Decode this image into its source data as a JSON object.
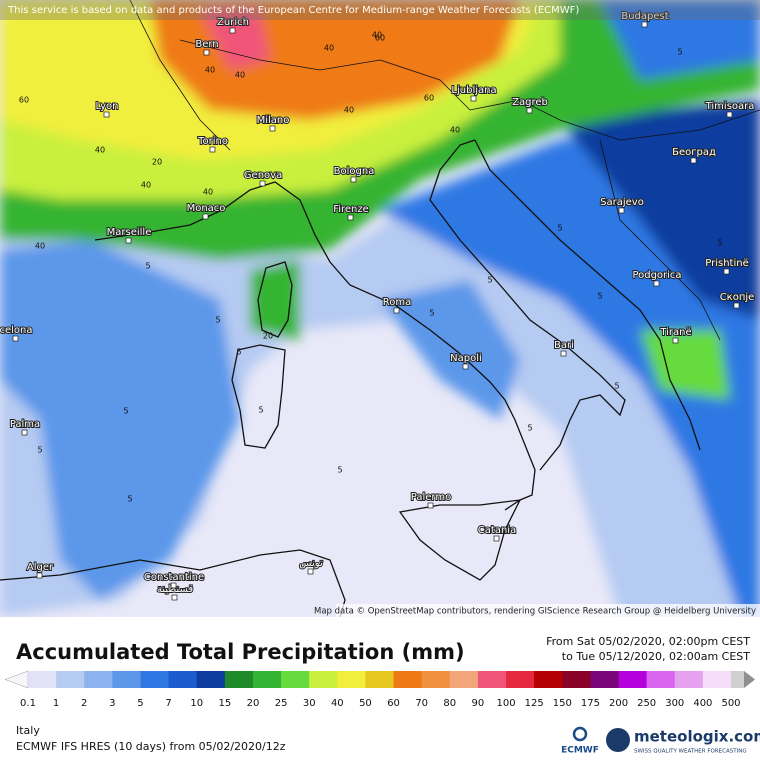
{
  "map": {
    "banner": "This service is based on data and products of the European Centre for Medium-range Weather Forecasts (ECMWF)",
    "attribution": "Map data © OpenStreetMap contributors, rendering GIScience Research Group @ Heidelberg University",
    "cities": [
      "Zurich",
      "Bern",
      "Budapest",
      "Lyon",
      "Milano",
      "Ljubljana",
      "Zagreb",
      "Timisoara",
      "Torino",
      "Genova",
      "Bologna",
      "Београд",
      "Monaco",
      "Firenze",
      "Sarajevo",
      "Marseille",
      "Podgorica",
      "Prishtinë",
      "Roma",
      "Скопје",
      "Tiranë",
      "Bari",
      "Napoli",
      "celona",
      "Palma",
      "Palermo",
      "Catania",
      "Alger",
      "Constantine",
      "قسنطينة",
      "تونس"
    ],
    "contour_labels": [
      "60",
      "40",
      "40",
      "40",
      "60",
      "40",
      "40",
      "40",
      "60",
      "40",
      "40",
      "40",
      "40",
      "20",
      "20",
      "5",
      "5",
      "5",
      "5",
      "5",
      "5",
      "5",
      "5",
      "5",
      "5",
      "5",
      "5",
      "5",
      "5",
      "5",
      "5"
    ]
  },
  "legend": {
    "title": "Accumulated Total Precipitation (mm)",
    "from": "From Sat 05/02/2020, 02:00pm CEST",
    "to": "to Tue 05/12/2020, 02:00am CEST",
    "ticks": [
      0.1,
      1,
      2,
      3,
      5,
      7,
      10,
      15,
      20,
      25,
      30,
      40,
      50,
      60,
      70,
      80,
      90,
      100,
      125,
      150,
      175,
      200,
      250,
      300,
      400,
      500
    ],
    "colors": [
      "#f6f6fc",
      "#e2e2f6",
      "#b6cbf2",
      "#8cb3ef",
      "#5c97ea",
      "#2f78e4",
      "#1c5ad0",
      "#0b3c9e",
      "#1f8a2a",
      "#34b433",
      "#66db3d",
      "#c9f03d",
      "#f1ef3c",
      "#e5c71f",
      "#ef7a15",
      "#f1913f",
      "#f2a57b",
      "#f05479",
      "#e5283e",
      "#b40202",
      "#8b0229",
      "#7a0479",
      "#b402dc",
      "#da66f0",
      "#e6a2f1",
      "#f6def9",
      "#cfcfcf",
      "#8f8f8f"
    ]
  },
  "footer": {
    "region": "Italy",
    "model": "ECMWF IFS HRES (10 days) from 05/02/2020/12z",
    "logo_left": "ECMWF",
    "logo_right": "meteologix.com",
    "tagline": "SWISS QUALITY WEATHER FORECASTING"
  }
}
